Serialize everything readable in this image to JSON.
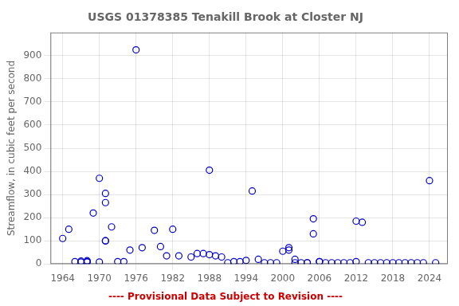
{
  "chart_data": {
    "type": "scatter",
    "title": "USGS 01378385 Tenakill Brook at Closter NJ",
    "y_label": "Streamflow, in cubic feet per second",
    "annotations": [
      {
        "text": "---- Provisional Data Subject to Revision ----",
        "color": "#cc0000"
      }
    ],
    "x": [
      1964,
      1965,
      1966,
      1967,
      1967,
      1968,
      1968,
      1968,
      1969,
      1970,
      1970,
      1971,
      1971,
      1971,
      1971,
      1972,
      1973,
      1974,
      1975,
      1976,
      1977,
      1979,
      1980,
      1981,
      1982,
      1983,
      1985,
      1986,
      1987,
      1988,
      1988,
      1989,
      1990,
      1991,
      1992,
      1993,
      1994,
      1995,
      1996,
      1997,
      1998,
      1999,
      2000,
      2001,
      2001,
      2002,
      2002,
      2003,
      2004,
      2004,
      2005,
      2005,
      2006,
      2006,
      2007,
      2008,
      2009,
      2010,
      2011,
      2012,
      2012,
      2013,
      2014,
      2015,
      2016,
      2017,
      2018,
      2019,
      2020,
      2021,
      2022,
      2023,
      2024,
      2025
    ],
    "values": [
      110,
      150,
      10,
      12,
      8,
      10,
      14,
      8,
      220,
      370,
      8,
      305,
      265,
      100,
      100,
      160,
      10,
      10,
      60,
      925,
      70,
      145,
      75,
      35,
      150,
      35,
      30,
      45,
      45,
      405,
      40,
      35,
      30,
      5,
      10,
      10,
      15,
      315,
      20,
      5,
      5,
      5,
      55,
      60,
      70,
      20,
      5,
      5,
      5,
      5,
      130,
      195,
      10,
      10,
      5,
      5,
      5,
      5,
      5,
      185,
      10,
      180,
      5,
      5,
      5,
      5,
      5,
      5,
      5,
      5,
      5,
      5,
      360,
      5
    ],
    "color": "#0000cc",
    "marker": "circle",
    "xlim": [
      1962,
      2027
    ],
    "ylim": [
      0,
      1000
    ],
    "xticks": [
      1964,
      1970,
      1976,
      1982,
      1988,
      1994,
      2000,
      2006,
      2012,
      2018,
      2024
    ],
    "yticks": [
      0,
      100,
      200,
      300,
      400,
      500,
      600,
      700,
      800,
      900
    ],
    "grid": true
  }
}
